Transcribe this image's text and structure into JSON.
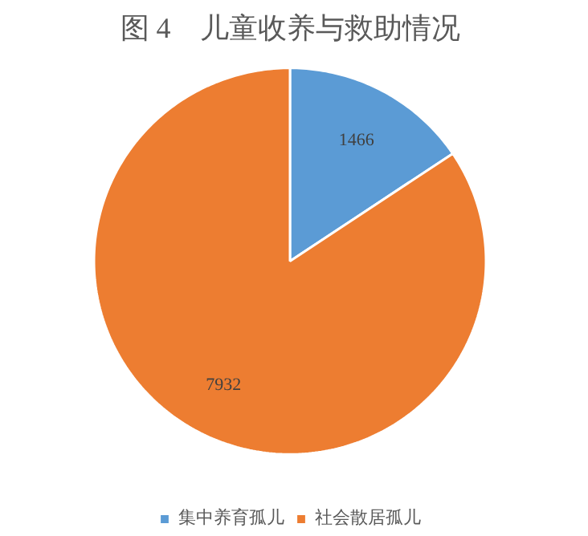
{
  "chart_data": {
    "type": "pie",
    "title": "图 4　儿童收养与救助情况",
    "categories": [
      "集中养育孤儿",
      "社会散居孤儿"
    ],
    "values": [
      1466,
      7932
    ],
    "colors": [
      "#5b9bd5",
      "#ed7d31"
    ],
    "data_labels": true,
    "legend": "bottom"
  }
}
